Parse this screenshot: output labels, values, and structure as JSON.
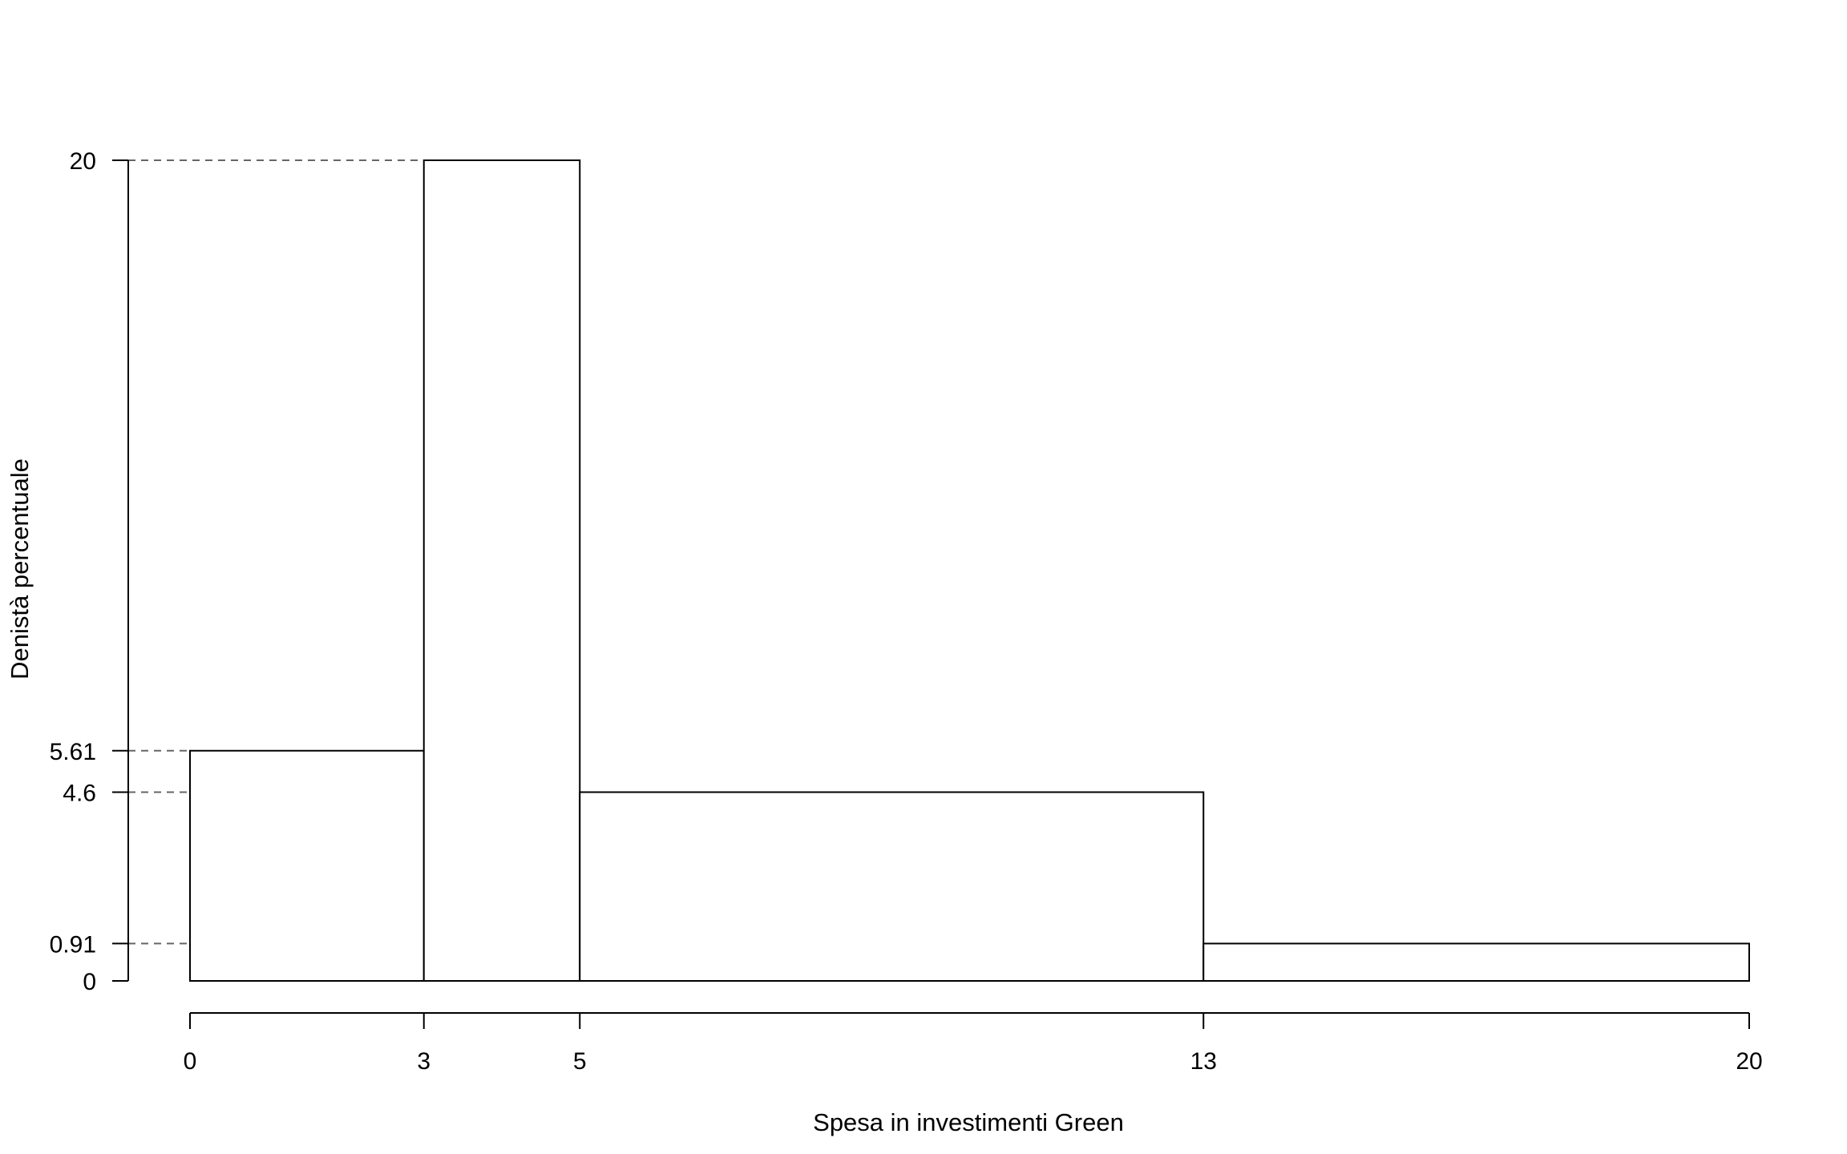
{
  "chart_data": {
    "type": "bar",
    "subtype": "histogram",
    "xlabel": "Spesa in investimenti Green",
    "ylabel": "Denistà percentuale",
    "bins": [
      {
        "from": 0,
        "to": 3,
        "density": 5.61
      },
      {
        "from": 3,
        "to": 5,
        "density": 20
      },
      {
        "from": 5,
        "to": 13,
        "density": 4.6
      },
      {
        "from": 13,
        "to": 20,
        "density": 0.91
      }
    ],
    "x_ticks": [
      0,
      3,
      5,
      13,
      20
    ],
    "x_tick_labels": [
      "0",
      "3",
      "5",
      "13",
      "20"
    ],
    "y_ticks": [
      0,
      0.91,
      4.6,
      5.61,
      20
    ],
    "y_tick_labels": [
      "0",
      "0.91",
      "4.6",
      "5.61",
      "20"
    ],
    "reference_lines": [
      20,
      5.61,
      4.6,
      0.91
    ],
    "xlim": [
      0,
      20
    ],
    "ylim": [
      0,
      20
    ],
    "grid": false,
    "legend": "none",
    "colors": {
      "bar_fill": "#ffffff",
      "bar_stroke": "#000000",
      "reference_line": "#666666"
    }
  }
}
